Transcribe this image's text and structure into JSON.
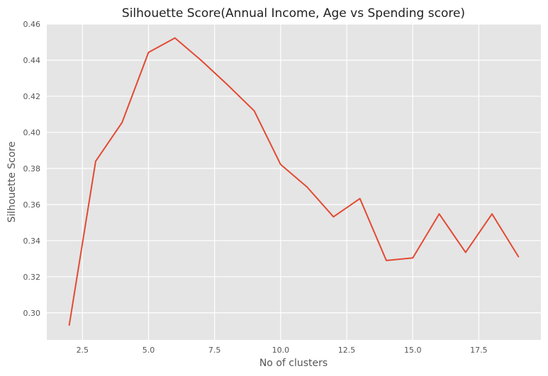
{
  "chart_data": {
    "type": "line",
    "title": "Silhouette Score(Annual Income, Age vs Spending score)",
    "xlabel": "No of clusters",
    "ylabel": "Silhouette Score",
    "xlim": [
      1.15,
      19.85
    ],
    "ylim": [
      0.285,
      0.46
    ],
    "xticks": [
      2.5,
      5.0,
      7.5,
      10.0,
      12.5,
      15.0,
      17.5
    ],
    "xtick_labels": [
      "2.5",
      "5.0",
      "7.5",
      "10.0",
      "12.5",
      "15.0",
      "17.5"
    ],
    "yticks": [
      0.3,
      0.32,
      0.34,
      0.36,
      0.38,
      0.4,
      0.42,
      0.44,
      0.46
    ],
    "ytick_labels": [
      "0.30",
      "0.32",
      "0.34",
      "0.36",
      "0.38",
      "0.40",
      "0.42",
      "0.44",
      "0.46"
    ],
    "grid": true,
    "style": {
      "line_color": "#E24A33",
      "background": "#E5E5E5",
      "grid_color": "#FFFFFF"
    },
    "series": [
      {
        "x": [
          2,
          3,
          4,
          5,
          6,
          7,
          8,
          9,
          10,
          11,
          12,
          13,
          14,
          15,
          16,
          17,
          18,
          19
        ],
        "values": [
          0.2932,
          0.384,
          0.4055,
          0.4443,
          0.4523,
          0.4398,
          0.4262,
          0.4119,
          0.3822,
          0.3697,
          0.3532,
          0.3633,
          0.329,
          0.3304,
          0.3548,
          0.3335,
          0.3548,
          0.3311
        ]
      }
    ]
  }
}
